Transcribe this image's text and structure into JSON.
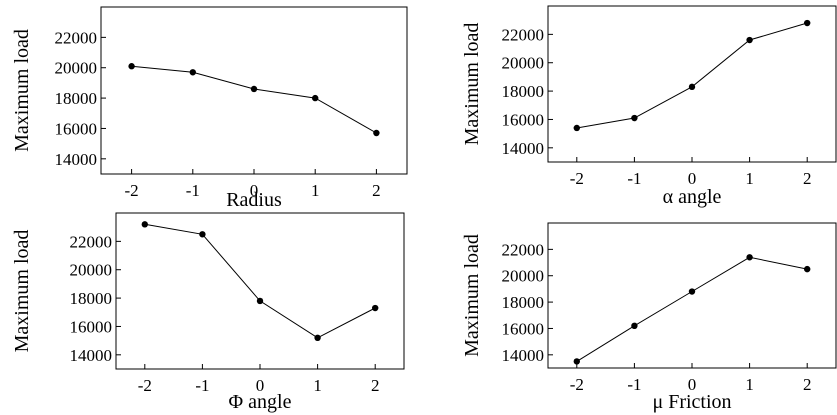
{
  "chart_data": [
    {
      "type": "line",
      "x": [
        -2,
        -1,
        0,
        1,
        2
      ],
      "y": [
        20100,
        19700,
        18600,
        18000,
        15700
      ],
      "xlabel": "Radius",
      "ylabel": "Maximum load",
      "xticks": [
        "-2",
        "-1",
        "0",
        "1",
        "2"
      ],
      "yticks": [
        14000,
        16000,
        18000,
        20000,
        22000
      ],
      "ylim": [
        13000,
        24000
      ]
    },
    {
      "type": "line",
      "x": [
        -2,
        -1,
        0,
        1,
        2
      ],
      "y": [
        15400,
        16100,
        18300,
        21600,
        22800
      ],
      "xlabel": "α angle",
      "ylabel": "Maximum load",
      "xticks": [
        "-2",
        "-1",
        "0",
        "1",
        "2"
      ],
      "yticks": [
        14000,
        16000,
        18000,
        20000,
        22000
      ],
      "ylim": [
        13000,
        24000
      ]
    },
    {
      "type": "line",
      "x": [
        -2,
        -1,
        0,
        1,
        2
      ],
      "y": [
        23200,
        22500,
        17800,
        15200,
        17300
      ],
      "xlabel": "Φ angle",
      "ylabel": "Maximum load",
      "xticks": [
        "-2",
        "-1",
        "0",
        "1",
        "2"
      ],
      "yticks": [
        14000,
        16000,
        18000,
        20000,
        22000
      ],
      "ylim": [
        13000,
        24000
      ]
    },
    {
      "type": "line",
      "x": [
        -2,
        -1,
        0,
        1,
        2
      ],
      "y": [
        13500,
        16200,
        18800,
        21400,
        20500
      ],
      "xlabel": "μ Friction",
      "ylabel": "Maximum load",
      "xticks": [
        "-2",
        "-1",
        "0",
        "1",
        "2"
      ],
      "yticks": [
        14000,
        16000,
        18000,
        20000,
        22000
      ],
      "ylim": [
        13000,
        24000
      ]
    }
  ]
}
